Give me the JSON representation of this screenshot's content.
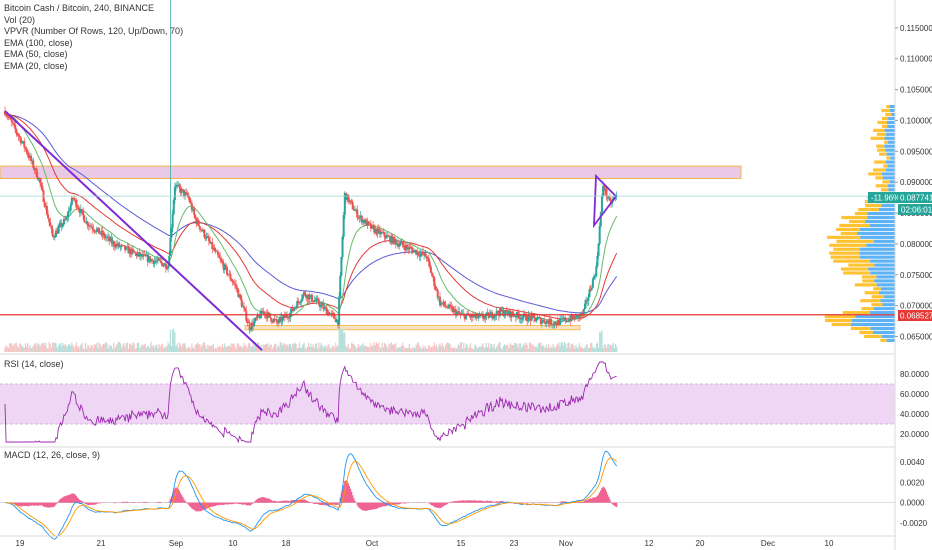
{
  "header": {
    "title": "Bitcoin Cash / Bitcoin, 240, BINANCE",
    "indicators": [
      "Vol (20)",
      "VPVR (Number Of Rows, 120, Up/Down, 70)",
      "EMA (100, close)",
      "EMA (50, close)",
      "EMA (20, close)"
    ]
  },
  "colors": {
    "up": "#26a69a",
    "down": "#ef5350",
    "ema100": "#5b5bd6",
    "ema50": "#e53935",
    "ema20": "#66bb6a",
    "trend": "#7e2bd6",
    "resistance_fill": "#e9c9e6",
    "resistance_border": "#f7b44a",
    "support_line": "#e53935",
    "rsi": "#9c27b0",
    "rsi_band": "#efd6f5",
    "macd": "#2196f3",
    "signal": "#ff9800",
    "hist": "#f06292",
    "vp_up": "#42a5f5",
    "vp_down": "#ffb300",
    "last_price_tag": "#26a69a",
    "pct_tag": "#26a69a",
    "support_tag": "#e53935"
  },
  "price_pane": {
    "last_price": "0.087741",
    "pct_change": "-11.96%",
    "countdown": "02:06:01",
    "support_price": "0.068527",
    "resistance_zone": [
      0.0906,
      0.0926
    ],
    "support_zone": [
      0.0661,
      0.0668
    ],
    "ylim": [
      0.0625,
      0.1195
    ],
    "ticks": [
      "0.115000",
      "0.110000",
      "0.105000",
      "0.100000",
      "0.095000",
      "0.090000",
      "0.085000",
      "0.080000",
      "0.075000",
      "0.070000",
      "0.065000"
    ]
  },
  "rsi_pane": {
    "label": "RSI (14, close)",
    "ylim": [
      8,
      98
    ],
    "band": [
      30,
      70
    ],
    "ticks": [
      "80.0000",
      "60.0000",
      "40.0000",
      "20.0000"
    ]
  },
  "macd_pane": {
    "label": "MACD (12, 26, close, 9)",
    "ylim": [
      -0.0032,
      0.0055
    ],
    "ticks": [
      "0.0040",
      "0.0020",
      "0.0000",
      "-0.0020"
    ]
  },
  "x_axis": {
    "labels": [
      "19",
      "21",
      "Sep",
      "10",
      "18",
      "Oct",
      "15",
      "23",
      "Nov",
      "12",
      "20",
      "Dec",
      "10"
    ]
  },
  "chart_data": {
    "type": "candlestick",
    "title": "Bitcoin Cash / Bitcoin, 240, BINANCE",
    "x_labels": [
      "19",
      "21",
      "Sep",
      "10",
      "18",
      "Oct",
      "15",
      "23",
      "Nov",
      "12",
      "20",
      "Dec",
      "10"
    ],
    "close_anchors": [
      {
        "date": "Aug 8",
        "close": 0.1015
      },
      {
        "date": "Aug 11",
        "close": 0.0955
      },
      {
        "date": "Aug 13",
        "close": 0.0905
      },
      {
        "date": "Aug 15",
        "close": 0.0812
      },
      {
        "date": "Aug 17",
        "close": 0.084
      },
      {
        "date": "Aug 18",
        "close": 0.0875
      },
      {
        "date": "Aug 20",
        "close": 0.0835
      },
      {
        "date": "Aug 24",
        "close": 0.08
      },
      {
        "date": "Aug 28",
        "close": 0.078
      },
      {
        "date": "Sep 1",
        "close": 0.0765
      },
      {
        "date": "Sep 2",
        "close": 0.0895
      },
      {
        "date": "Sep 4",
        "close": 0.0875
      },
      {
        "date": "Sep 5",
        "close": 0.084
      },
      {
        "date": "Sep 8",
        "close": 0.0785
      },
      {
        "date": "Sep 11",
        "close": 0.073
      },
      {
        "date": "Sep 13",
        "close": 0.0665
      },
      {
        "date": "Sep 15",
        "close": 0.069
      },
      {
        "date": "Sep 17",
        "close": 0.0672
      },
      {
        "date": "Sep 19",
        "close": 0.0688
      },
      {
        "date": "Sep 21",
        "close": 0.072
      },
      {
        "date": "Sep 23",
        "close": 0.0705
      },
      {
        "date": "Sep 26",
        "close": 0.0675
      },
      {
        "date": "Sep 27",
        "close": 0.088
      },
      {
        "date": "Sep 29",
        "close": 0.0845
      },
      {
        "date": "Oct 1",
        "close": 0.0825
      },
      {
        "date": "Oct 5",
        "close": 0.08
      },
      {
        "date": "Oct 9",
        "close": 0.078
      },
      {
        "date": "Oct 11",
        "close": 0.0705
      },
      {
        "date": "Oct 14",
        "close": 0.0685
      },
      {
        "date": "Oct 17",
        "close": 0.068
      },
      {
        "date": "Oct 20",
        "close": 0.069
      },
      {
        "date": "Oct 24",
        "close": 0.068
      },
      {
        "date": "Oct 28",
        "close": 0.0672
      },
      {
        "date": "Nov 1",
        "close": 0.0685
      },
      {
        "date": "Nov 3",
        "close": 0.076
      },
      {
        "date": "Nov 4",
        "close": 0.0895
      },
      {
        "date": "Nov 5",
        "close": 0.0865
      },
      {
        "date": "Nov 6",
        "close": 0.0877
      }
    ],
    "series": [
      {
        "name": "EMA (100, close)"
      },
      {
        "name": "EMA (50, close)"
      },
      {
        "name": "EMA (20, close)"
      },
      {
        "name": "RSI (14, close)"
      },
      {
        "name": "MACD (12, 26, close, 9)"
      }
    ],
    "legend_position": "top-left",
    "grid": false
  }
}
